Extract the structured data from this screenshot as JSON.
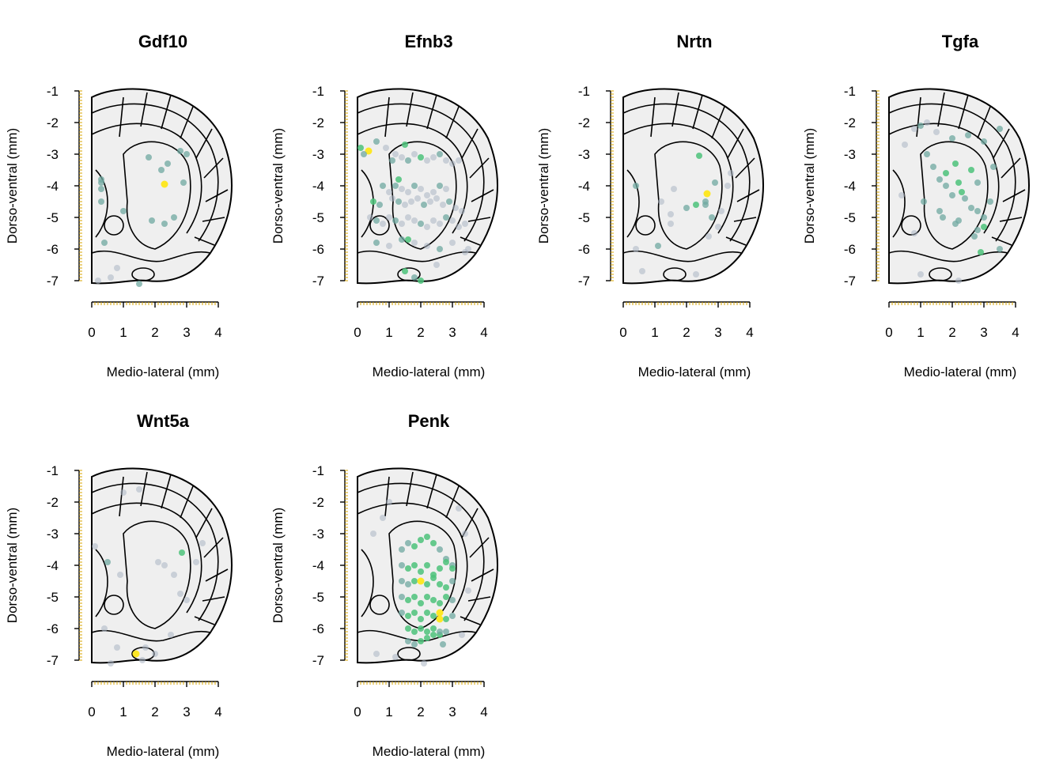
{
  "figure": {
    "xlabel": "Medio-lateral (mm)",
    "ylabel": "Dorso-ventral (mm)",
    "x_ticks": [
      0,
      1,
      2,
      3,
      4
    ],
    "y_ticks": [
      -1,
      -2,
      -3,
      -4,
      -5,
      -6,
      -7
    ],
    "xlim": [
      0,
      4
    ],
    "ylim": [
      -7,
      -1
    ],
    "colors": {
      "low": "#A9B4C2",
      "mid_low": "#6FA8A0",
      "mid": "#4CC27A",
      "high": "#FDE725",
      "outline": "#000000",
      "fill": "#EFEFEF",
      "axis_ticks": "#D9A400"
    }
  },
  "chart_data": [
    {
      "type": "scatter",
      "title": "Gdf10",
      "x": [
        0.3,
        1.8,
        2.2,
        2.4,
        0.3,
        1.0,
        0.3,
        0.3,
        2.3,
        2.8,
        3.0,
        2.9,
        0.4,
        0.8,
        0.2,
        0.6,
        1.5,
        2.6,
        2.3,
        1.9
      ],
      "y": [
        -3.9,
        -3.1,
        -3.5,
        -3.3,
        -4.5,
        -4.8,
        -3.8,
        -4.1,
        -3.95,
        -2.9,
        -3.0,
        -3.9,
        -5.8,
        -6.6,
        -7.0,
        -6.9,
        -7.1,
        -5.0,
        -5.2,
        -5.1
      ],
      "level": [
        1,
        1,
        1,
        1,
        1,
        1,
        1,
        1,
        3,
        1,
        1,
        1,
        1,
        0,
        0,
        0,
        1,
        1,
        1,
        1
      ]
    },
    {
      "type": "scatter",
      "title": "Efnb3",
      "x": [
        0.35,
        0.1,
        0.2,
        1.5,
        0.6,
        0.9,
        1.1,
        1.2,
        1.4,
        1.6,
        1.8,
        2.0,
        2.2,
        2.4,
        2.6,
        2.8,
        3.0,
        3.2,
        0.8,
        1.0,
        1.2,
        1.4,
        1.6,
        1.8,
        2.0,
        2.2,
        2.4,
        2.6,
        2.8,
        0.5,
        0.7,
        1.1,
        1.3,
        1.5,
        1.7,
        1.9,
        2.1,
        2.3,
        2.5,
        2.7,
        2.9,
        3.1,
        3.3,
        0.4,
        0.6,
        0.8,
        1.0,
        1.2,
        1.4,
        1.6,
        1.8,
        2.0,
        2.2,
        2.4,
        2.6,
        2.8,
        3.0,
        3.2,
        3.4,
        0.6,
        1.0,
        1.4,
        1.8,
        2.2,
        2.6,
        3.0,
        3.4,
        1.5,
        1.8,
        2.0,
        2.5,
        3.5,
        1.3,
        1.6
      ],
      "y": [
        -2.9,
        -2.8,
        -3.0,
        -2.7,
        -2.6,
        -2.8,
        -3.2,
        -3.0,
        -3.1,
        -3.2,
        -3.0,
        -3.1,
        -3.2,
        -3.1,
        -3.0,
        -3.2,
        -3.3,
        -3.2,
        -4.0,
        -4.2,
        -4.0,
        -4.1,
        -4.2,
        -4.0,
        -4.1,
        -4.3,
        -4.2,
        -4.0,
        -4.1,
        -4.5,
        -4.6,
        -4.4,
        -4.5,
        -4.6,
        -4.5,
        -4.4,
        -4.6,
        -4.5,
        -4.4,
        -4.6,
        -4.5,
        -4.7,
        -4.8,
        -5.0,
        -5.1,
        -5.2,
        -5.0,
        -5.1,
        -5.2,
        -5.0,
        -5.1,
        -5.2,
        -5.3,
        -5.1,
        -5.2,
        -5.0,
        -5.1,
        -5.3,
        -5.2,
        -5.8,
        -5.9,
        -5.7,
        -5.8,
        -5.9,
        -6.0,
        -5.8,
        -6.1,
        -6.7,
        -6.9,
        -7.0,
        -6.5,
        -6.0,
        -3.8,
        -5.7
      ],
      "level": [
        3,
        2,
        1,
        2,
        1,
        0,
        1,
        0,
        0,
        1,
        0,
        2,
        0,
        0,
        1,
        0,
        0,
        0,
        1,
        0,
        1,
        0,
        0,
        1,
        0,
        0,
        0,
        1,
        0,
        2,
        1,
        0,
        1,
        0,
        0,
        0,
        1,
        0,
        0,
        0,
        1,
        0,
        0,
        0,
        1,
        0,
        0,
        1,
        0,
        0,
        0,
        1,
        0,
        0,
        0,
        1,
        0,
        0,
        0,
        1,
        0,
        1,
        0,
        0,
        1,
        0,
        0,
        2,
        1,
        2,
        0,
        0,
        2,
        2
      ]
    },
    {
      "type": "scatter",
      "title": "Nrtn",
      "x": [
        2.65,
        2.3,
        2.6,
        2.4,
        2.9,
        1.6,
        2.8,
        3.1,
        3.3,
        0.4,
        1.2,
        1.5,
        2.0,
        2.6,
        3.0,
        1.5,
        2.7,
        0.4,
        0.6,
        1.1,
        2.3,
        3.4
      ],
      "y": [
        -4.25,
        -4.6,
        -4.6,
        -3.05,
        -3.9,
        -4.1,
        -5.0,
        -4.8,
        -4.0,
        -4.0,
        -4.5,
        -4.9,
        -4.7,
        -4.5,
        -5.3,
        -5.2,
        -5.6,
        -6.0,
        -6.7,
        -5.9,
        -6.8,
        -3.6
      ],
      "level": [
        3,
        2,
        1,
        2,
        1,
        0,
        1,
        0,
        0,
        1,
        0,
        0,
        1,
        1,
        0,
        0,
        0,
        0,
        0,
        1,
        0,
        0
      ]
    },
    {
      "type": "scatter",
      "title": "Tgfa",
      "x": [
        1.8,
        2.1,
        2.3,
        2.6,
        2.8,
        3.0,
        1.2,
        1.4,
        1.6,
        1.8,
        2.0,
        2.2,
        2.4,
        2.6,
        2.8,
        3.0,
        3.2,
        0.5,
        0.8,
        1.0,
        1.2,
        1.5,
        2.0,
        2.5,
        3.0,
        3.5,
        1.1,
        1.6,
        2.2,
        2.9,
        2.8,
        3.5,
        0.4,
        0.8,
        1.7,
        2.1,
        2.7,
        3.3,
        1.0,
        2.2
      ],
      "y": [
        -3.6,
        -3.3,
        -4.2,
        -3.5,
        -3.9,
        -5.3,
        -3.0,
        -3.4,
        -3.8,
        -4.0,
        -4.3,
        -3.9,
        -4.4,
        -4.7,
        -4.8,
        -5.0,
        -4.5,
        -2.7,
        -2.2,
        -2.1,
        -2.0,
        -2.3,
        -2.5,
        -2.4,
        -2.6,
        -2.2,
        -4.5,
        -4.8,
        -5.1,
        -6.1,
        -5.4,
        -6.0,
        -4.3,
        -5.5,
        -5.0,
        -5.2,
        -5.6,
        -3.4,
        -6.8,
        -7.0
      ],
      "level": [
        2,
        2,
        2,
        2,
        1,
        2,
        1,
        1,
        1,
        1,
        1,
        2,
        1,
        1,
        1,
        1,
        1,
        0,
        0,
        1,
        0,
        0,
        1,
        1,
        1,
        1,
        1,
        1,
        1,
        2,
        1,
        1,
        0,
        0,
        1,
        1,
        1,
        1,
        0,
        0
      ]
    },
    {
      "type": "scatter",
      "title": "Wnt5a",
      "x": [
        1.4,
        2.85,
        0.1,
        0.5,
        0.9,
        1.0,
        1.5,
        2.1,
        2.3,
        2.6,
        2.8,
        3.0,
        0.4,
        0.8,
        1.7,
        2.0,
        2.5,
        3.3,
        3.5,
        0.6,
        1.6
      ],
      "y": [
        -6.8,
        -3.6,
        -3.4,
        -3.9,
        -4.3,
        -1.7,
        -1.6,
        -3.9,
        -4.0,
        -4.3,
        -4.9,
        -5.1,
        -6.0,
        -6.6,
        -6.6,
        -6.8,
        -6.2,
        -3.9,
        -3.3,
        -7.1,
        -7.0
      ],
      "level": [
        3,
        2,
        0,
        1,
        0,
        0,
        0,
        0,
        0,
        0,
        0,
        0,
        0,
        0,
        0,
        0,
        0,
        0,
        0,
        0,
        0
      ]
    },
    {
      "type": "scatter",
      "title": "Penk",
      "x": [
        2.6,
        1.4,
        1.6,
        1.8,
        2.0,
        2.2,
        2.4,
        2.6,
        2.8,
        3.0,
        1.4,
        1.6,
        1.8,
        2.0,
        2.2,
        2.4,
        2.6,
        2.8,
        3.0,
        1.4,
        1.6,
        1.8,
        2.0,
        2.2,
        2.4,
        2.6,
        2.8,
        3.0,
        1.4,
        1.6,
        1.8,
        2.0,
        2.2,
        2.4,
        2.6,
        2.8,
        3.0,
        1.4,
        1.6,
        1.8,
        2.0,
        2.2,
        2.4,
        2.6,
        2.8,
        3.0,
        1.6,
        1.8,
        2.0,
        2.2,
        2.4,
        2.6,
        2.8,
        1.6,
        1.8,
        2.0,
        2.2,
        2.4,
        2.6,
        0.5,
        0.8,
        1.0,
        3.2,
        3.4,
        0.6,
        1.2,
        2.1,
        2.7,
        3.3,
        3.5
      ],
      "y": [
        -5.7,
        -3.5,
        -3.3,
        -3.4,
        -3.2,
        -3.1,
        -3.3,
        -3.5,
        -3.8,
        -4.0,
        -4.0,
        -4.1,
        -4.0,
        -4.2,
        -4.0,
        -4.3,
        -4.1,
        -3.9,
        -4.1,
        -4.5,
        -4.6,
        -4.5,
        -4.5,
        -4.6,
        -4.4,
        -4.6,
        -4.7,
        -4.5,
        -5.0,
        -5.1,
        -5.0,
        -5.2,
        -5.0,
        -5.1,
        -5.2,
        -5.0,
        -5.1,
        -5.5,
        -5.6,
        -5.5,
        -5.7,
        -5.5,
        -5.6,
        -5.5,
        -5.7,
        -5.6,
        -6.0,
        -6.1,
        -6.0,
        -6.1,
        -6.0,
        -6.2,
        -6.1,
        -6.4,
        -6.5,
        -6.4,
        -6.3,
        -6.2,
        -6.1,
        -3.0,
        -2.5,
        -2.0,
        -2.2,
        -3.0,
        -6.8,
        -6.9,
        -7.1,
        -6.5,
        -6.2,
        -4.8
      ],
      "level": [
        3,
        1,
        1,
        2,
        2,
        2,
        2,
        1,
        1,
        1,
        1,
        2,
        2,
        2,
        2,
        2,
        2,
        2,
        2,
        1,
        1,
        2,
        3,
        2,
        2,
        2,
        2,
        1,
        1,
        2,
        2,
        2,
        2,
        2,
        2,
        2,
        1,
        1,
        2,
        2,
        2,
        2,
        2,
        3,
        2,
        1,
        2,
        2,
        2,
        2,
        2,
        2,
        1,
        1,
        1,
        2,
        2,
        2,
        1,
        0,
        0,
        0,
        0,
        0,
        0,
        0,
        0,
        1,
        0,
        0
      ]
    }
  ]
}
